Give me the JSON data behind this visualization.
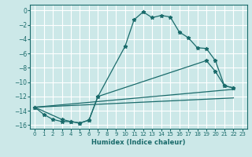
{
  "xlabel": "Humidex (Indice chaleur)",
  "bg_color": "#cce8e8",
  "grid_color": "#ffffff",
  "line_color": "#1a6b6b",
  "xlim": [
    -0.5,
    23.5
  ],
  "ylim": [
    -16.5,
    0.8
  ],
  "xticks": [
    0,
    1,
    2,
    3,
    4,
    5,
    6,
    7,
    8,
    9,
    10,
    11,
    12,
    13,
    14,
    15,
    16,
    17,
    18,
    19,
    20,
    21,
    22,
    23
  ],
  "yticks": [
    0,
    -2,
    -4,
    -6,
    -8,
    -10,
    -12,
    -14,
    -16
  ],
  "line1_x": [
    0,
    1,
    2,
    3,
    4,
    5,
    6,
    7,
    10,
    11,
    12,
    13,
    14,
    15,
    16,
    17,
    18,
    19,
    20,
    21,
    22
  ],
  "line1_y": [
    -13.5,
    -14.5,
    -15.2,
    -15.5,
    -15.5,
    -15.7,
    -15.3,
    -12.0,
    -5.0,
    -1.3,
    -0.2,
    -1.0,
    -0.7,
    -0.9,
    -3.0,
    -3.8,
    -5.2,
    -5.3,
    -7.0,
    -10.5,
    -10.8
  ],
  "line2_x": [
    0,
    3,
    4,
    5,
    6,
    7,
    19,
    20,
    21,
    22
  ],
  "line2_y": [
    -13.5,
    -15.2,
    -15.5,
    -15.7,
    -15.3,
    -12.0,
    -7.0,
    -8.5,
    -10.5,
    -10.8
  ],
  "line3_x": [
    0,
    22
  ],
  "line3_y": [
    -13.5,
    -11.0
  ],
  "line4_x": [
    0,
    22
  ],
  "line4_y": [
    -13.5,
    -12.2
  ]
}
